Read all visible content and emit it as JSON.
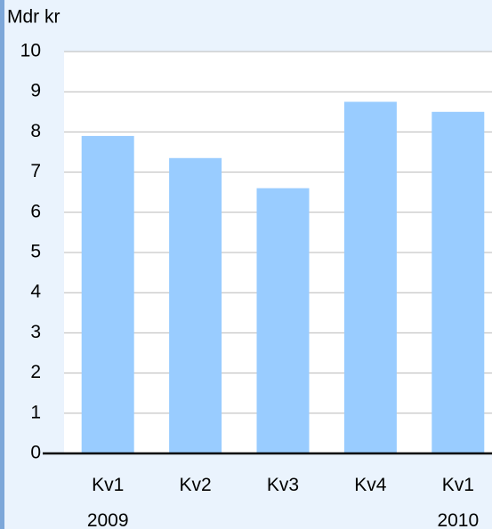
{
  "chart_data": {
    "type": "bar",
    "ylabel": "Mdr kr",
    "categories": [
      [
        "Kv1",
        "2009"
      ],
      [
        "Kv2"
      ],
      [
        "Kv3"
      ],
      [
        "Kv4"
      ],
      [
        "Kv1",
        "2010"
      ]
    ],
    "values": [
      7.9,
      7.35,
      6.6,
      8.75,
      8.5
    ],
    "color": "#99ccff",
    "ylim": [
      0,
      10
    ],
    "yticks": [
      0,
      1,
      2,
      3,
      4,
      5,
      6,
      7,
      8,
      9,
      10
    ],
    "grid": true
  }
}
